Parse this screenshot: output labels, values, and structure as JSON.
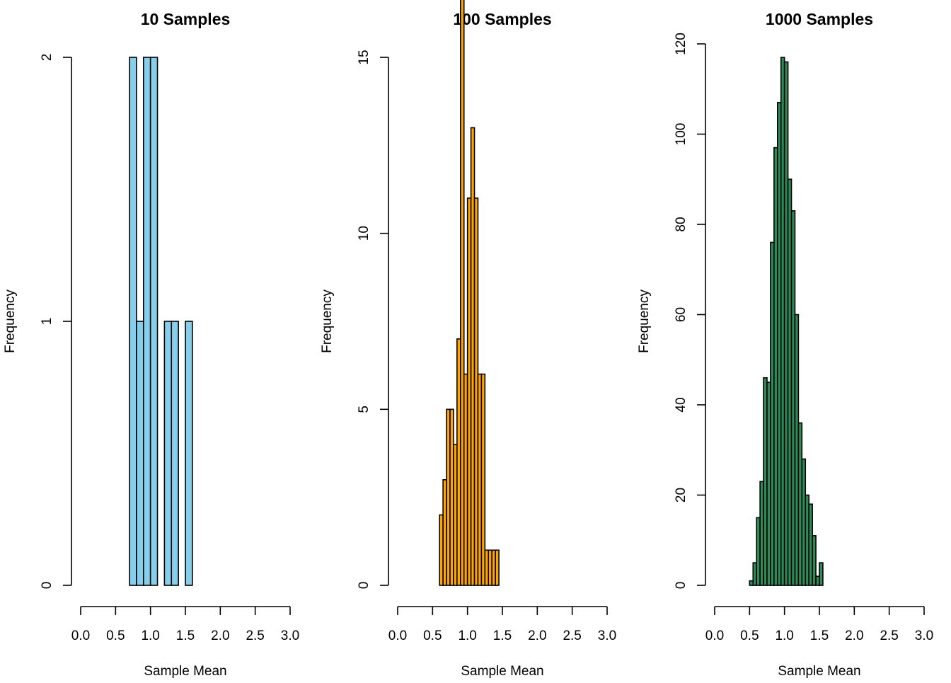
{
  "chart_data": [
    {
      "type": "bar",
      "title": "10 Samples",
      "xlabel": "Sample Mean",
      "ylabel": "Frequency",
      "color": "#87CEEB",
      "bin_width": 0.1,
      "xlim": [
        0,
        3
      ],
      "xticks": [
        "0.0",
        "0.5",
        "1.0",
        "1.5",
        "2.0",
        "2.5",
        "3.0"
      ],
      "ylim": [
        0,
        2
      ],
      "yticks": [
        "0",
        "1",
        "2"
      ],
      "bins": [
        {
          "x0": 0.7,
          "x1": 0.8,
          "count": 2
        },
        {
          "x0": 0.8,
          "x1": 0.9,
          "count": 1
        },
        {
          "x0": 0.9,
          "x1": 1.0,
          "count": 2
        },
        {
          "x0": 1.0,
          "x1": 1.1,
          "count": 2
        },
        {
          "x0": 1.1,
          "x1": 1.2,
          "count": 0
        },
        {
          "x0": 1.2,
          "x1": 1.3,
          "count": 1
        },
        {
          "x0": 1.3,
          "x1": 1.4,
          "count": 1
        },
        {
          "x0": 1.4,
          "x1": 1.5,
          "count": 0
        },
        {
          "x0": 1.5,
          "x1": 1.6,
          "count": 1
        }
      ]
    },
    {
      "type": "bar",
      "title": "100 Samples",
      "xlabel": "Sample Mean",
      "ylabel": "Frequency",
      "color": "#FFA500",
      "bin_width": 0.05,
      "xlim": [
        0,
        3
      ],
      "xticks": [
        "0.0",
        "0.5",
        "1.0",
        "1.5",
        "2.0",
        "2.5",
        "3.0"
      ],
      "ylim": [
        0,
        17
      ],
      "yticks": [
        "0",
        "5",
        "10",
        "15"
      ],
      "bins": [
        {
          "x0": 0.6,
          "x1": 0.65,
          "count": 2
        },
        {
          "x0": 0.65,
          "x1": 0.7,
          "count": 3
        },
        {
          "x0": 0.7,
          "x1": 0.75,
          "count": 5
        },
        {
          "x0": 0.75,
          "x1": 0.8,
          "count": 5
        },
        {
          "x0": 0.8,
          "x1": 0.85,
          "count": 4
        },
        {
          "x0": 0.85,
          "x1": 0.9,
          "count": 7
        },
        {
          "x0": 0.9,
          "x1": 0.95,
          "count": 17
        },
        {
          "x0": 0.95,
          "x1": 1.0,
          "count": 6
        },
        {
          "x0": 1.0,
          "x1": 1.05,
          "count": 11
        },
        {
          "x0": 1.05,
          "x1": 1.1,
          "count": 13
        },
        {
          "x0": 1.1,
          "x1": 1.15,
          "count": 11
        },
        {
          "x0": 1.15,
          "x1": 1.2,
          "count": 6
        },
        {
          "x0": 1.2,
          "x1": 1.25,
          "count": 6
        },
        {
          "x0": 1.25,
          "x1": 1.3,
          "count": 1
        },
        {
          "x0": 1.3,
          "x1": 1.35,
          "count": 1
        },
        {
          "x0": 1.35,
          "x1": 1.4,
          "count": 1
        },
        {
          "x0": 1.4,
          "x1": 1.45,
          "count": 1
        }
      ]
    },
    {
      "type": "bar",
      "title": "1000 Samples",
      "xlabel": "Sample Mean",
      "ylabel": "Frequency",
      "color": "#2E8B57",
      "bin_width": 0.05,
      "xlim": [
        0,
        3
      ],
      "xticks": [
        "0.0",
        "0.5",
        "1.0",
        "1.5",
        "2.0",
        "2.5",
        "3.0"
      ],
      "ylim": [
        0,
        120
      ],
      "yticks": [
        "0",
        "20",
        "40",
        "60",
        "80",
        "100",
        "120"
      ],
      "bins": [
        {
          "x0": 0.5,
          "x1": 0.55,
          "count": 1
        },
        {
          "x0": 0.55,
          "x1": 0.6,
          "count": 5
        },
        {
          "x0": 0.6,
          "x1": 0.65,
          "count": 15
        },
        {
          "x0": 0.65,
          "x1": 0.7,
          "count": 23
        },
        {
          "x0": 0.7,
          "x1": 0.75,
          "count": 46
        },
        {
          "x0": 0.75,
          "x1": 0.8,
          "count": 45
        },
        {
          "x0": 0.8,
          "x1": 0.85,
          "count": 76
        },
        {
          "x0": 0.85,
          "x1": 0.9,
          "count": 97
        },
        {
          "x0": 0.9,
          "x1": 0.95,
          "count": 107
        },
        {
          "x0": 0.95,
          "x1": 1.0,
          "count": 117
        },
        {
          "x0": 1.0,
          "x1": 1.05,
          "count": 116
        },
        {
          "x0": 1.05,
          "x1": 1.1,
          "count": 90
        },
        {
          "x0": 1.1,
          "x1": 1.15,
          "count": 83
        },
        {
          "x0": 1.15,
          "x1": 1.2,
          "count": 60
        },
        {
          "x0": 1.2,
          "x1": 1.25,
          "count": 36
        },
        {
          "x0": 1.25,
          "x1": 1.3,
          "count": 28
        },
        {
          "x0": 1.3,
          "x1": 1.35,
          "count": 20
        },
        {
          "x0": 1.35,
          "x1": 1.4,
          "count": 18
        },
        {
          "x0": 1.4,
          "x1": 1.45,
          "count": 11
        },
        {
          "x0": 1.45,
          "x1": 1.5,
          "count": 2
        },
        {
          "x0": 1.5,
          "x1": 1.55,
          "count": 5
        }
      ]
    }
  ]
}
